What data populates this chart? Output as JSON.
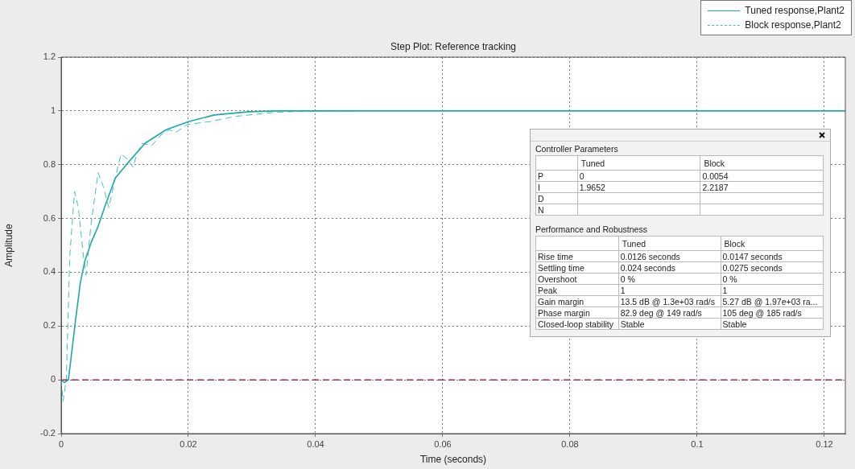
{
  "chart_data": [
    {
      "type": "line",
      "title": "Step Plot: Reference tracking",
      "xlabel": "Time (seconds)",
      "ylabel": "Amplitude",
      "xlim": [
        0,
        0.1233
      ],
      "xticks": [
        0,
        0.02,
        0.04,
        0.06,
        0.08,
        0.1,
        0.12
      ],
      "ylim": [
        -0.2,
        1.2
      ],
      "yticks": [
        -0.2,
        0,
        0.2,
        0.4,
        0.6,
        0.8,
        1,
        1.2
      ],
      "grid": true,
      "legend": "top right",
      "marker": "none",
      "series": [
        {
          "name": "Tuned response,Plant2",
          "color": "#20a8a8",
          "line_style": "solid",
          "x": [
            0,
            0.0005,
            0.00114,
            0.0022,
            0.003,
            0.0037,
            0.0047,
            0.0058,
            0.0068,
            0.0085,
            0.0106,
            0.0132,
            0.0165,
            0.02,
            0.0241,
            0.0296,
            0.034,
            0.1233
          ],
          "values": [
            0,
            -0.01,
            0,
            0.21,
            0.36,
            0.44,
            0.51,
            0.57,
            0.64,
            0.75,
            0.81,
            0.88,
            0.93,
            0.96,
            0.985,
            0.997,
            1,
            1
          ]
        },
        {
          "name": "Block response,Plant2",
          "color": "#45bfbf",
          "line_style": "dashed",
          "x": [
            0,
            0.0003,
            0.0008,
            0.00135,
            0.0021,
            0.0027,
            0.0035,
            0.0039,
            0.0047,
            0.0058,
            0.0066,
            0.0075,
            0.0083,
            0.0094,
            0.0104,
            0.0113,
            0.0119,
            0.0127,
            0.0142,
            0.0157,
            0.017,
            0.018,
            0.0199,
            0.0233,
            0.0275,
            0.0338,
            0.0401,
            0.046
          ],
          "values": [
            0,
            -0.08,
            0,
            0.46,
            0.7,
            0.64,
            0.46,
            0.39,
            0.58,
            0.77,
            0.72,
            0.64,
            0.73,
            0.84,
            0.82,
            0.79,
            0.84,
            0.88,
            0.87,
            0.91,
            0.93,
            0.92,
            0.95,
            0.96,
            0.98,
            0.995,
            1,
            1
          ]
        }
      ],
      "ref_lines": [
        {
          "axis": "y",
          "value": 0,
          "color": "#9e2a55",
          "line_style": "dashed"
        }
      ]
    },
    {
      "type": "other",
      "title": "Controller Parameters",
      "categories": [
        "Tuned",
        "Block"
      ],
      "y_categories": [
        "P",
        "I",
        "D",
        "N"
      ],
      "cell_labels": [
        [
          "0",
          "0.0054"
        ],
        [
          "1.9652",
          "2.2187"
        ],
        [
          null,
          null
        ],
        [
          null,
          null
        ]
      ]
    },
    {
      "type": "other",
      "title": "Performance and Robustness",
      "categories": [
        "Tuned",
        "Block"
      ],
      "y_categories": [
        "Rise time",
        "Settling time",
        "Overshoot",
        "Peak",
        "Gain margin",
        "Phase margin",
        "Closed-loop stability"
      ],
      "cell_labels": [
        [
          "0.0126 seconds",
          "0.0147 seconds"
        ],
        [
          "0.024 seconds",
          "0.0275 seconds"
        ],
        [
          "0 %",
          "0 %"
        ],
        [
          "1",
          "1"
        ],
        [
          "13.5 dB @ 1.3e+03 rad/s",
          "5.27 dB @ 1.97e+03 ra..."
        ],
        [
          "82.9 deg @ 149 rad/s",
          "105 deg @ 185 rad/s"
        ],
        [
          "Stable",
          "Stable"
        ]
      ]
    }
  ]
}
